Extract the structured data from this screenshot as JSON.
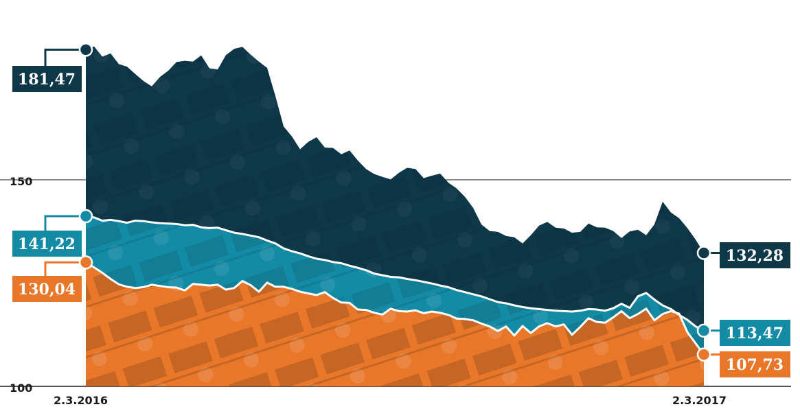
{
  "chart_data": {
    "type": "area",
    "x_labels": [
      "2.3.2016",
      "2.3.2017"
    ],
    "y_ticks": [
      "150",
      "100"
    ],
    "ylim": [
      100,
      190
    ],
    "grid": "horizontal at 150 and 100",
    "series": [
      {
        "color": "#0e3748",
        "start_label": "181,47",
        "end_label": "132,28",
        "values": [
          181.5,
          182.3,
          179.8,
          180.6,
          178.0,
          177.4,
          175.6,
          173.9,
          172.6,
          174.9,
          176.4,
          178.5,
          178.8,
          178.6,
          180.1,
          177.0,
          176.7,
          180.2,
          181.7,
          182.2,
          180.3,
          178.6,
          177.1,
          170.3,
          162.9,
          160.5,
          157.4,
          159.2,
          160.3,
          157.8,
          157.7,
          156.2,
          157.1,
          154.7,
          152.6,
          151.4,
          150.7,
          150.1,
          151.7,
          152.9,
          152.6,
          150.4,
          151.0,
          151.5,
          149.3,
          147.9,
          145.9,
          143.2,
          139.2,
          137.6,
          137.4,
          136.4,
          136.1,
          134.6,
          136.6,
          138.9,
          139.8,
          138.4,
          138.2,
          137.2,
          137.4,
          139.4,
          138.5,
          138.4,
          137.6,
          135.9,
          137.5,
          137.9,
          136.6,
          139.2,
          144.7,
          142.1,
          140.7,
          138.3,
          135.5,
          132.3
        ]
      },
      {
        "color": "#148ba5",
        "start_label": "141,22",
        "end_label": "113,47",
        "values": [
          141.2,
          140.9,
          140.1,
          140.3,
          140.0,
          139.6,
          140.1,
          140.0,
          139.7,
          139.5,
          139.4,
          139.3,
          139.0,
          139.1,
          138.5,
          138.3,
          138.4,
          137.8,
          137.2,
          136.9,
          136.5,
          136.1,
          135.3,
          134.6,
          133.4,
          132.7,
          132.2,
          131.5,
          130.9,
          130.6,
          130.1,
          129.8,
          129.2,
          128.7,
          128.1,
          127.3,
          126.9,
          126.5,
          126.4,
          126.0,
          125.7,
          125.3,
          124.9,
          124.4,
          124.0,
          123.3,
          122.8,
          122.3,
          121.8,
          121.1,
          120.4,
          120.1,
          119.6,
          119.2,
          118.9,
          118.7,
          118.5,
          118.3,
          118.2,
          118.1,
          118.3,
          118.7,
          118.6,
          118.3,
          118.9,
          120.0,
          119.0,
          121.8,
          122.6,
          121.0,
          119.6,
          118.7,
          117.3,
          116.1,
          114.5,
          113.5
        ]
      },
      {
        "color": "#e8772a",
        "start_label": "130,04",
        "end_label": "107,73",
        "values": [
          130.0,
          128.8,
          127.5,
          126.0,
          124.7,
          124.1,
          123.8,
          124.0,
          124.6,
          124.3,
          124.0,
          123.9,
          123.2,
          124.8,
          124.6,
          124.4,
          124.6,
          123.4,
          123.8,
          125.5,
          124.5,
          122.9,
          125.1,
          124.1,
          124.1,
          123.6,
          122.9,
          122.5,
          122.1,
          122.8,
          121.4,
          120.3,
          120.2,
          118.6,
          118.5,
          117.8,
          117.4,
          118.8,
          118.2,
          118.1,
          118.4,
          117.7,
          118.1,
          117.8,
          117.3,
          116.4,
          116.3,
          116.0,
          115.2,
          114.5,
          113.4,
          114.5,
          112.3,
          114.6,
          112.9,
          114.5,
          115.3,
          114.5,
          115.0,
          112.5,
          114.4,
          116.5,
          115.6,
          115.4,
          116.7,
          118.2,
          116.5,
          117.5,
          118.8,
          116.0,
          117.5,
          118.2,
          117.6,
          113.1,
          110.4,
          107.7
        ]
      }
    ]
  }
}
